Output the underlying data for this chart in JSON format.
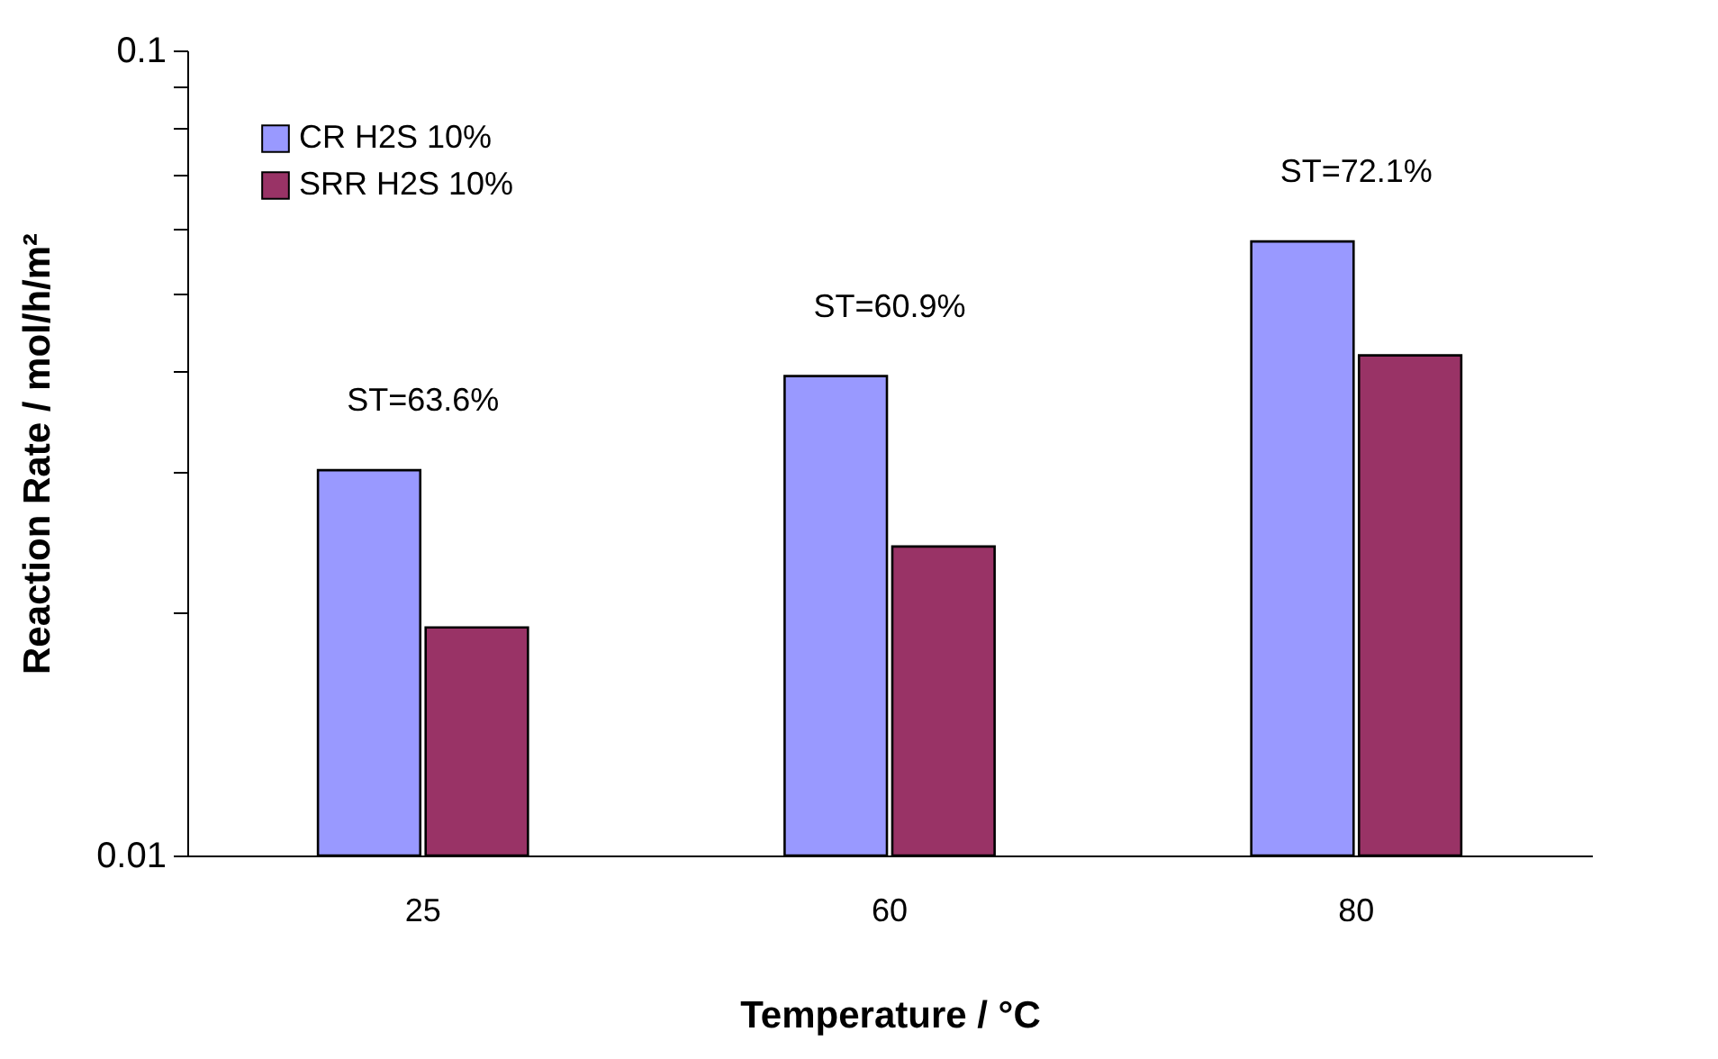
{
  "chart_data": {
    "type": "bar",
    "xlabel": "Temperature / °C",
    "ylabel": "Reaction Rate / mol/h/m²",
    "categories": [
      "25",
      "60",
      "80"
    ],
    "series": [
      {
        "name": "CR H2S 10%",
        "color": "#9999ff",
        "values": [
          0.0301,
          0.0394,
          0.0579
        ]
      },
      {
        "name": "SRR H2S 10%",
        "color": "#993366",
        "values": [
          0.0192,
          0.0242,
          0.0418
        ]
      }
    ],
    "log": true,
    "ylim": [
      0.01,
      0.1
    ],
    "yticks": [
      0.01,
      {
        "value": 0.02,
        "label": null
      },
      {
        "value": 0.03,
        "label": null
      },
      {
        "value": 0.04,
        "label": null
      },
      {
        "value": 0.05,
        "label": null
      },
      {
        "value": 0.06,
        "label": null
      },
      {
        "value": 0.07,
        "label": null
      },
      {
        "value": 0.08,
        "label": null
      },
      {
        "value": 0.09,
        "label": null
      },
      0.1
    ],
    "annotations": [
      "ST=63.6%",
      "ST=60.9%",
      "ST=72.1%"
    ],
    "grid": false,
    "legend": "top left"
  }
}
